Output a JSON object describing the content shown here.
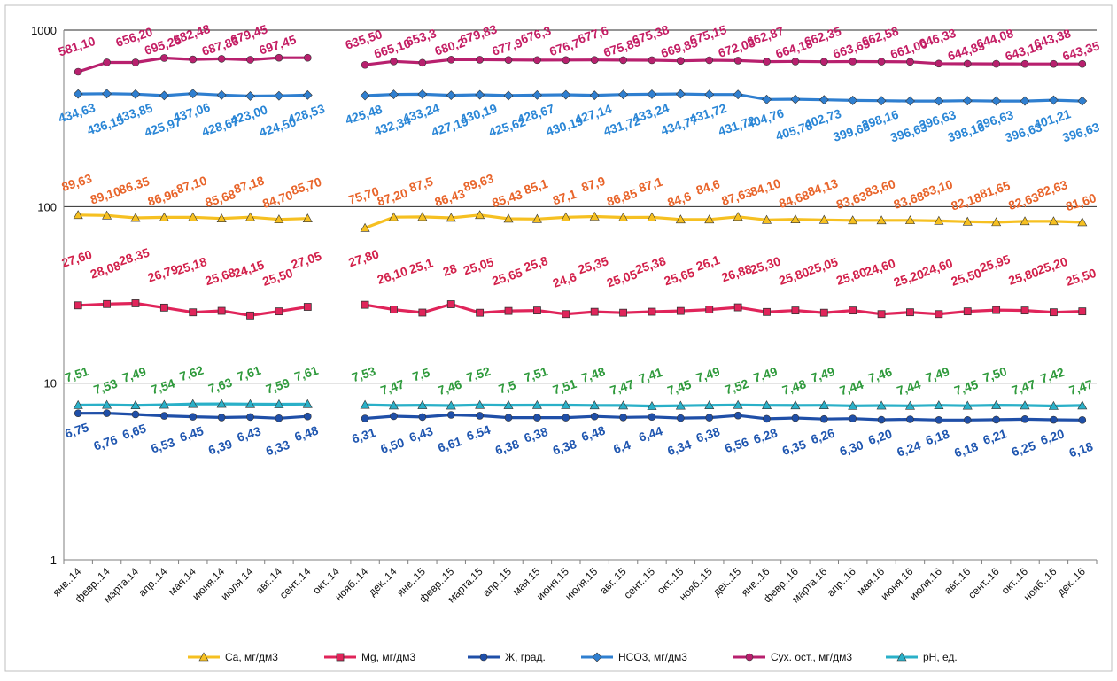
{
  "chart_data": {
    "type": "line",
    "y_scale": "log",
    "ylim": [
      1,
      1000
    ],
    "y_ticks": [
      "1",
      "10",
      "100",
      "1000"
    ],
    "grid": "horizontal",
    "legend_position": "bottom",
    "categories": [
      "янв..14",
      "февр..14",
      "марта.14",
      "апр..14",
      "мая.14",
      "июня.14",
      "июля.14",
      "авг..14",
      "сент..14",
      "окт..14",
      "нояб..14",
      "дек..14",
      "янв..15",
      "февр..15",
      "марта.15",
      "апр..15",
      "мая.15",
      "июня.15",
      "июля.15",
      "авг..15",
      "сент..15",
      "окт..15",
      "нояб..15",
      "дек..15",
      "янв..16",
      "февр..16",
      "марта.16",
      "апр..16",
      "мая.16",
      "июня.16",
      "июля.16",
      "авг..16",
      "сент..16",
      "окт..16",
      "нояб..16",
      "дек..16"
    ],
    "series": [
      {
        "name": "Ca, мг/дм3",
        "line_color": "#f6c021",
        "label_color": "#e8642a",
        "marker": "triangle",
        "values": [
          89.63,
          89.1,
          86.35,
          86.96,
          87.1,
          85.68,
          87.18,
          84.7,
          85.7,
          null,
          75.7,
          87.2,
          87.5,
          86.43,
          89.63,
          85.43,
          85.1,
          87.1,
          87.9,
          86.85,
          87.1,
          84.6,
          84.6,
          87.63,
          84.1,
          84.68,
          84.13,
          83.63,
          83.6,
          83.68,
          83.1,
          82.18,
          81.65,
          82.63,
          82.63,
          81.6
        ],
        "labels": [
          "89,63",
          "89,10",
          "86,35",
          "86,96",
          "87,10",
          "85,68",
          "87,18",
          "84,70",
          "85,70",
          "",
          "75,70",
          "87,20",
          "87,5",
          "86,43",
          "89,63",
          "85,43",
          "85,1",
          "87,1",
          "87,9",
          "86,85",
          "87,1",
          "84,6",
          "84,6",
          "87,63",
          "84,10",
          "84,68",
          "84,13",
          "83,63",
          "83,60",
          "83,68",
          "83,10",
          "82,18",
          "81,65",
          "82,63",
          "82,63",
          "81,60"
        ]
      },
      {
        "name": "Mg, мг/дм3",
        "line_color": "#e0245a",
        "label_color": "#d2204a",
        "marker": "square",
        "values": [
          27.6,
          28.08,
          28.35,
          26.79,
          25.18,
          25.68,
          24.15,
          25.5,
          27.05,
          null,
          27.8,
          26.1,
          25.1,
          28,
          25.05,
          25.65,
          25.8,
          24.6,
          25.35,
          25.05,
          25.38,
          25.65,
          26.1,
          26.88,
          25.3,
          25.8,
          25.05,
          25.8,
          24.6,
          25.2,
          24.6,
          25.5,
          25.95,
          25.8,
          25.2,
          25.5
        ],
        "labels": [
          "27,60",
          "28,08",
          "28,35",
          "26,79",
          "25,18",
          "25,68",
          "24,15",
          "25,50",
          "27,05",
          "",
          "27,80",
          "26,10",
          "25,1",
          "28",
          "25,05",
          "25,65",
          "25,8",
          "24,6",
          "25,35",
          "25,05",
          "25,38",
          "25,65",
          "26,1",
          "26,88",
          "25,30",
          "25,80",
          "25,05",
          "25,80",
          "24,60",
          "25,20",
          "24,60",
          "25,50",
          "25,95",
          "25,80",
          "25,20",
          "25,50"
        ]
      },
      {
        "name": "Ж, град.",
        "line_color": "#1f4fa8",
        "label_color": "#1f56b0",
        "marker": "circle",
        "values": [
          6.75,
          6.76,
          6.65,
          6.53,
          6.45,
          6.39,
          6.43,
          6.33,
          6.48,
          null,
          6.31,
          6.5,
          6.43,
          6.61,
          6.54,
          6.38,
          6.38,
          6.38,
          6.48,
          6.4,
          6.44,
          6.34,
          6.38,
          6.56,
          6.28,
          6.35,
          6.26,
          6.3,
          6.2,
          6.24,
          6.18,
          6.18,
          6.21,
          6.25,
          6.2,
          6.18
        ],
        "labels": [
          "6,75",
          "6,76",
          "6,65",
          "6,53",
          "6,45",
          "6,39",
          "6,43",
          "6,33",
          "6,48",
          "",
          "6,31",
          "6,50",
          "6,43",
          "6,61",
          "6,54",
          "6,38",
          "6,38",
          "6,38",
          "6,48",
          "6,4",
          "6,44",
          "6,34",
          "6,38",
          "6,56",
          "6,28",
          "6,35",
          "6,26",
          "6,30",
          "6,20",
          "6,24",
          "6,18",
          "6,18",
          "6,21",
          "6,25",
          "6,20",
          "6,18"
        ]
      },
      {
        "name": "HCO3, мг/дм3",
        "line_color": "#2f7fd0",
        "label_color": "#2a86d6",
        "marker": "diamond",
        "values": [
          434.63,
          436.15,
          433.85,
          425.97,
          437.06,
          428.67,
          423.0,
          424.5,
          428.53,
          null,
          425.48,
          432.34,
          433.24,
          427.19,
          430.19,
          425.62,
          428.67,
          430.19,
          427.14,
          431.72,
          433.24,
          434.77,
          431.72,
          431.72,
          404.76,
          405.78,
          402.73,
          399.68,
          398.16,
          396.63,
          396.63,
          398.16,
          396.63,
          396.63,
          401.21,
          396.63
        ],
        "labels": [
          "434,63",
          "436,15",
          "433,85",
          "425,97",
          "437,06",
          "428,67",
          "423,00",
          "424,50",
          "428,53",
          "",
          "425,48",
          "432,34",
          "433,24",
          "427,19",
          "430,19",
          "425,62",
          "428,67",
          "430,19",
          "427,14",
          "431,72",
          "433,24",
          "434,77",
          "431,72",
          "431,72",
          "404,76",
          "405,78",
          "402,73",
          "399,68",
          "398,16",
          "396,63",
          "396,63",
          "398,16",
          "396,63",
          "396,63",
          "401,21",
          "396,63"
        ]
      },
      {
        "name": "Сух. ост., мг/дм3",
        "line_color": "#b8206e",
        "label_color": "#c41e64",
        "marker": "circle",
        "values": [
          581.1,
          null,
          656.2,
          695.25,
          682.48,
          687.83,
          679.45,
          697.45,
          null,
          null,
          635.5,
          665.1,
          653.3,
          680.2,
          679.83,
          677.9,
          676.3,
          676.7,
          677.6,
          675.85,
          675.38,
          669.85,
          675.15,
          672.03,
          662.87,
          664.18,
          662.35,
          663.65,
          662.58,
          661.0,
          646.33,
          644.83,
          644.08,
          643.18,
          643.38,
          643.35
        ],
        "plot_values": [
          581.1,
          656.2,
          656.2,
          695.25,
          682.48,
          687.83,
          679.45,
          697.45,
          697.45,
          null,
          635.5,
          665.1,
          653.3,
          680.2,
          679.83,
          677.9,
          676.3,
          676.7,
          677.6,
          675.85,
          675.38,
          669.85,
          675.15,
          672.03,
          662.87,
          664.18,
          662.35,
          663.65,
          662.58,
          661.0,
          646.33,
          644.83,
          644.08,
          643.18,
          643.38,
          643.35
        ],
        "labels": [
          "581,10",
          "",
          "656,20",
          "695,25",
          "682,48",
          "687,83",
          "679,45",
          "697,45",
          "",
          "",
          "635,50",
          "665,10",
          "653,3",
          "680,2",
          "679,83",
          "677,9",
          "676,3",
          "676,7",
          "677,6",
          "675,85",
          "675,38",
          "669,85",
          "675,15",
          "672,03",
          "662,87",
          "664,18",
          "662,35",
          "663,65",
          "662,58",
          "661,00",
          "646,33",
          "644,83",
          "644,08",
          "643,18",
          "643,38",
          "643,35"
        ]
      },
      {
        "name": "pH, ед.",
        "line_color": "#2ab0c8",
        "label_color": "#2f9a3c",
        "marker": "triangle",
        "values": [
          7.51,
          7.53,
          7.49,
          7.54,
          7.62,
          7.63,
          7.61,
          7.59,
          7.61,
          null,
          7.53,
          7.47,
          7.5,
          7.46,
          7.52,
          7.5,
          7.51,
          7.51,
          7.48,
          7.47,
          7.41,
          7.45,
          7.49,
          7.52,
          7.49,
          7.48,
          7.49,
          7.44,
          7.46,
          7.44,
          7.49,
          7.45,
          7.5,
          7.47,
          7.42,
          7.47
        ],
        "labels": [
          "7,51",
          "7,53",
          "7,49",
          "7,54",
          "7,62",
          "7,63",
          "7,61",
          "7,59",
          "7,61",
          "",
          "7,53",
          "7,47",
          "7,5",
          "7,46",
          "7,52",
          "7,5",
          "7,51",
          "7,51",
          "7,48",
          "7,47",
          "7,41",
          "7,45",
          "7,49",
          "7,52",
          "7,49",
          "7,48",
          "7,49",
          "7,44",
          "7,46",
          "7,44",
          "7,49",
          "7,45",
          "7,50",
          "7,47",
          "7,42",
          "7,47"
        ]
      }
    ]
  }
}
